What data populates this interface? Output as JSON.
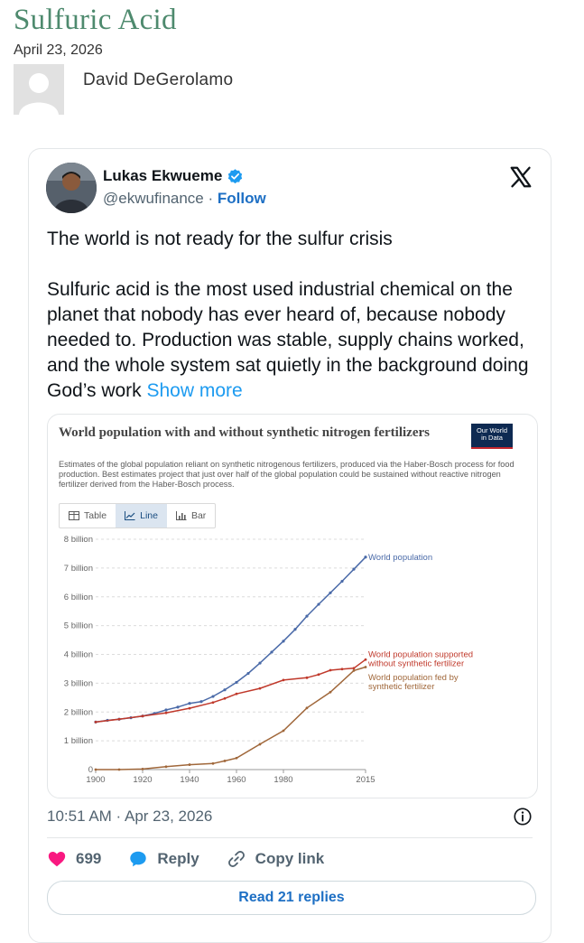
{
  "post": {
    "title": "Sulfuric Acid",
    "date": "April 23, 2026",
    "author": "David DeGerolamo"
  },
  "tweet": {
    "name": "Lukas Ekwueme",
    "handle": "@ekwufinance",
    "separator": "·",
    "follow_label": "Follow",
    "paragraph1": "The world is not ready for the sulfur crisis",
    "paragraph2": "Sulfuric acid is the most used industrial chemical on the planet that nobody has ever heard of, because nobody needed to. Production was stable, supply chains worked, and the whole system sat quietly in the background doing God’s work",
    "show_more": "Show more",
    "timestamp": "10:51 AM · Apr 23, 2026",
    "likes": "699",
    "reply_label": "Reply",
    "copy_link_label": "Copy link",
    "read_replies": "Read 21 replies",
    "icons": [
      "verified-badge-icon",
      "x-logo-icon",
      "info-icon",
      "heart-icon",
      "reply-bubble-icon",
      "link-icon"
    ],
    "colors": {
      "link": "#1d9bf0",
      "like": "#f91880",
      "verified": "#1d9bf0"
    }
  },
  "chart_card": {
    "logo_line1": "Our World",
    "logo_line2": "in Data",
    "tabs": [
      {
        "label": "Table",
        "icon": "table-icon",
        "active": false
      },
      {
        "label": "Line",
        "icon": "line-chart-icon",
        "active": true
      },
      {
        "label": "Bar",
        "icon": "bar-chart-icon",
        "active": false
      }
    ]
  },
  "chart_data": {
    "type": "line",
    "title": "World population with and without synthetic nitrogen fertilizers",
    "subtitle": "Estimates of the global population reliant on synthetic nitrogenous fertilizers, produced via the Haber-Bosch process for food production. Best estimates project that just over half of the global population could be sustained without reactive nitrogen fertilizer derived from the Haber-Bosch process.",
    "xlim": [
      1900,
      2015
    ],
    "ylim": [
      0,
      8
    ],
    "x_ticks": [
      1900,
      1920,
      1940,
      1960,
      1980,
      2015
    ],
    "y_ticks": [
      {
        "value": 0,
        "label": "0"
      },
      {
        "value": 1,
        "label": "1 billion"
      },
      {
        "value": 2,
        "label": "2 billion"
      },
      {
        "value": 3,
        "label": "3 billion"
      },
      {
        "value": 4,
        "label": "4 billion"
      },
      {
        "value": 5,
        "label": "5 billion"
      },
      {
        "value": 6,
        "label": "6 billion"
      },
      {
        "value": 7,
        "label": "7 billion"
      },
      {
        "value": 8,
        "label": "8 billion"
      }
    ],
    "grid": true,
    "series": [
      {
        "name": "World population",
        "color": "#4a6aa8",
        "x": [
          1900,
          1905,
          1910,
          1915,
          1920,
          1925,
          1930,
          1935,
          1940,
          1945,
          1950,
          1955,
          1960,
          1965,
          1970,
          1975,
          1980,
          1985,
          1990,
          1995,
          2000,
          2005,
          2010,
          2015
        ],
        "values": [
          1.65,
          1.71,
          1.75,
          1.8,
          1.86,
          1.95,
          2.07,
          2.17,
          2.3,
          2.36,
          2.54,
          2.77,
          3.03,
          3.34,
          3.7,
          4.08,
          4.46,
          4.87,
          5.33,
          5.74,
          6.14,
          6.54,
          6.96,
          7.38
        ]
      },
      {
        "name": "World population supported without synthetic fertilizer",
        "color": "#c0392b",
        "x": [
          1900,
          1910,
          1920,
          1930,
          1940,
          1950,
          1955,
          1960,
          1970,
          1980,
          1990,
          1995,
          2000,
          2005,
          2010,
          2015
        ],
        "values": [
          1.65,
          1.75,
          1.86,
          1.97,
          2.13,
          2.33,
          2.47,
          2.63,
          2.82,
          3.11,
          3.19,
          3.3,
          3.45,
          3.49,
          3.52,
          3.82
        ]
      },
      {
        "name": "World population fed by synthetic fertilizer",
        "color": "#a0673a",
        "x": [
          1900,
          1910,
          1920,
          1930,
          1940,
          1950,
          1955,
          1960,
          1970,
          1980,
          1990,
          2000,
          2010,
          2015
        ],
        "values": [
          0,
          0,
          0.02,
          0.1,
          0.17,
          0.21,
          0.3,
          0.4,
          0.88,
          1.35,
          2.14,
          2.69,
          3.44,
          3.56
        ]
      }
    ],
    "series_labels": [
      {
        "lines": [
          "World population"
        ]
      },
      {
        "lines": [
          "World population supported",
          "without synthetic fertilizer"
        ]
      },
      {
        "lines": [
          "World population fed by",
          "synthetic fertilizer"
        ]
      }
    ]
  }
}
